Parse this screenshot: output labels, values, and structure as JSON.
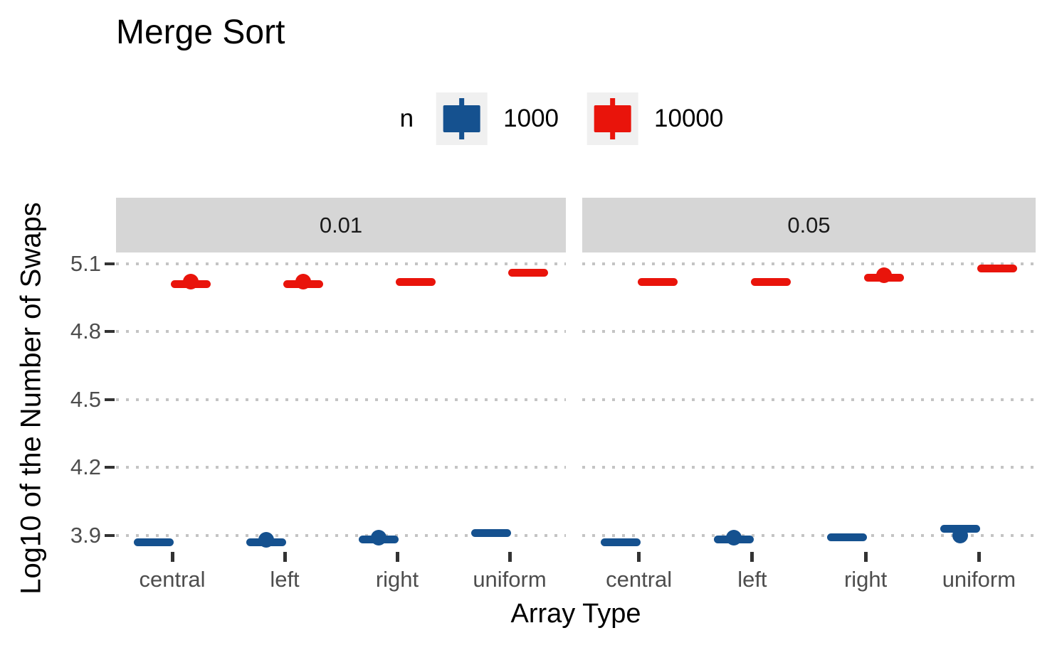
{
  "title": "Merge Sort",
  "legend": {
    "title": "n",
    "entries": [
      {
        "label": "1000",
        "color": "#15518F"
      },
      {
        "label": "10000",
        "color": "#E9140B"
      }
    ]
  },
  "axes": {
    "x_title": "Array Type",
    "y_title": "Log10 of the Number of Swaps",
    "y_tick_labels": [
      "5.1",
      "4.8",
      "4.5",
      "4.2",
      "3.9"
    ]
  },
  "chart_data": {
    "type": "boxplot",
    "title": "Merge Sort",
    "xlabel": "Array Type",
    "ylabel": "Log10 of the Number of Swaps",
    "categories": [
      "central",
      "left",
      "right",
      "uniform"
    ],
    "y_ticks": [
      3.9,
      4.2,
      4.5,
      4.8,
      5.1
    ],
    "ylim": [
      3.84,
      5.15
    ],
    "grid": "horizontal-dotted",
    "legend_position": "top",
    "legend_title": "n",
    "facet_variable_values": [
      "0.01",
      "0.05"
    ],
    "facets": [
      {
        "label": "0.01",
        "series": [
          {
            "name": "1000",
            "color": "#15518F",
            "boxes": [
              {
                "category": "central",
                "median": 3.87
              },
              {
                "category": "left",
                "median": 3.87,
                "outlier": 3.88
              },
              {
                "category": "right",
                "median": 3.88,
                "outlier": 3.89
              },
              {
                "category": "uniform",
                "median": 3.91
              }
            ]
          },
          {
            "name": "10000",
            "color": "#E9140B",
            "boxes": [
              {
                "category": "central",
                "median": 5.01,
                "outlier": 5.02
              },
              {
                "category": "left",
                "median": 5.01,
                "outlier": 5.02
              },
              {
                "category": "right",
                "median": 5.02
              },
              {
                "category": "uniform",
                "median": 5.06
              }
            ]
          }
        ]
      },
      {
        "label": "0.05",
        "series": [
          {
            "name": "1000",
            "color": "#15518F",
            "boxes": [
              {
                "category": "central",
                "median": 3.87
              },
              {
                "category": "left",
                "median": 3.88,
                "outlier": 3.89
              },
              {
                "category": "right",
                "median": 3.89
              },
              {
                "category": "uniform",
                "median": 3.93,
                "outlier": 3.9
              }
            ]
          },
          {
            "name": "10000",
            "color": "#E9140B",
            "boxes": [
              {
                "category": "central",
                "median": 5.02
              },
              {
                "category": "left",
                "median": 5.02
              },
              {
                "category": "right",
                "median": 5.04,
                "outlier": 5.05
              },
              {
                "category": "uniform",
                "median": 5.08
              }
            ]
          }
        ]
      }
    ]
  }
}
